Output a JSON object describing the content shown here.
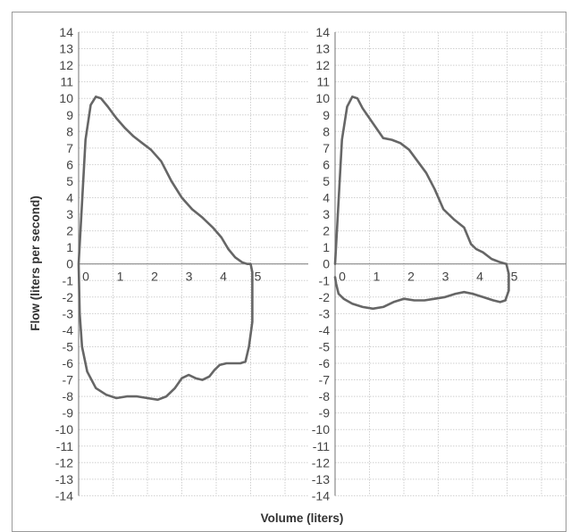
{
  "chart_data": {
    "type": "line",
    "xlabel": "Volume (liters)",
    "ylabel": "Flow (liters per second)",
    "grid": true,
    "line_color": "#666666",
    "panels": [
      {
        "xlim": [
          0,
          7
        ],
        "ylim": [
          -14,
          14
        ],
        "x_ticks": [
          "0",
          "1",
          "2",
          "3",
          "4",
          "5"
        ],
        "y_ticks": [
          "14",
          "13",
          "12",
          "11",
          "10",
          "9",
          "8",
          "7",
          "6",
          "5",
          "4",
          "3",
          "2",
          "1",
          "0",
          "-1",
          "-2",
          "-3",
          "-4",
          "-5",
          "-6",
          "-7",
          "-8",
          "-9",
          "-10",
          "-11",
          "-12",
          "-13",
          "-14"
        ],
        "series": [
          {
            "x": [
              0,
              0.08,
              0.2,
              0.35,
              0.5,
              0.65,
              0.85,
              1.1,
              1.35,
              1.6,
              1.85,
              2.1,
              2.4,
              2.7,
              3.0,
              3.3,
              3.6,
              3.9,
              4.15,
              4.35,
              4.55,
              4.75,
              4.9,
              5.0,
              5.05,
              5.05,
              4.95,
              4.85,
              4.7,
              4.5,
              4.3,
              4.1,
              3.95,
              3.8,
              3.6,
              3.4,
              3.2,
              3.0,
              2.8,
              2.55,
              2.3,
              2.0,
              1.7,
              1.4,
              1.1,
              0.8,
              0.5,
              0.25,
              0.1,
              0.03,
              0
            ],
            "y": [
              0,
              3,
              7.5,
              9.6,
              10.1,
              10.0,
              9.5,
              8.8,
              8.2,
              7.7,
              7.3,
              6.9,
              6.2,
              5.0,
              4.0,
              3.3,
              2.8,
              2.2,
              1.6,
              0.9,
              0.4,
              0.1,
              0,
              0,
              -0.5,
              -3.5,
              -5.0,
              -5.9,
              -6.0,
              -6.0,
              -6.0,
              -6.1,
              -6.4,
              -6.8,
              -7.0,
              -6.9,
              -6.7,
              -6.9,
              -7.5,
              -8.0,
              -8.2,
              -8.1,
              -8.0,
              -8.0,
              -8.1,
              -7.9,
              -7.5,
              -6.5,
              -5.0,
              -3.0,
              0
            ]
          }
        ]
      },
      {
        "xlim": [
          0,
          7
        ],
        "ylim": [
          -14,
          14
        ],
        "x_ticks": [
          "0",
          "1",
          "2",
          "3",
          "4",
          "5"
        ],
        "y_ticks": [
          "14",
          "13",
          "12",
          "11",
          "10",
          "9",
          "8",
          "7",
          "6",
          "5",
          "4",
          "3",
          "2",
          "1",
          "0",
          "-1",
          "-2",
          "-3",
          "-4",
          "-5",
          "-6",
          "-7",
          "-8",
          "-9",
          "-10",
          "-11",
          "-12",
          "-13",
          "-14"
        ],
        "series": [
          {
            "x": [
              0,
              0.08,
              0.2,
              0.35,
              0.5,
              0.65,
              0.8,
              1.0,
              1.2,
              1.4,
              1.65,
              1.9,
              2.15,
              2.4,
              2.65,
              2.9,
              3.15,
              3.45,
              3.75,
              3.95,
              4.1,
              4.3,
              4.55,
              4.8,
              4.98,
              5.05,
              5.05,
              4.95,
              4.8,
              4.6,
              4.3,
              4.0,
              3.75,
              3.5,
              3.2,
              2.9,
              2.6,
              2.3,
              2.0,
              1.7,
              1.4,
              1.1,
              0.8,
              0.5,
              0.25,
              0.1,
              0.03,
              0
            ],
            "y": [
              0,
              3,
              7.5,
              9.5,
              10.1,
              10.0,
              9.4,
              8.8,
              8.2,
              7.6,
              7.5,
              7.3,
              6.9,
              6.2,
              5.5,
              4.5,
              3.3,
              2.7,
              2.2,
              1.2,
              0.9,
              0.7,
              0.3,
              0.1,
              0,
              -0.6,
              -1.6,
              -2.2,
              -2.3,
              -2.2,
              -2.0,
              -1.8,
              -1.7,
              -1.8,
              -2.0,
              -2.1,
              -2.2,
              -2.2,
              -2.1,
              -2.3,
              -2.6,
              -2.7,
              -2.6,
              -2.4,
              -2.1,
              -1.8,
              -1.2,
              -0.8
            ]
          }
        ]
      }
    ]
  }
}
